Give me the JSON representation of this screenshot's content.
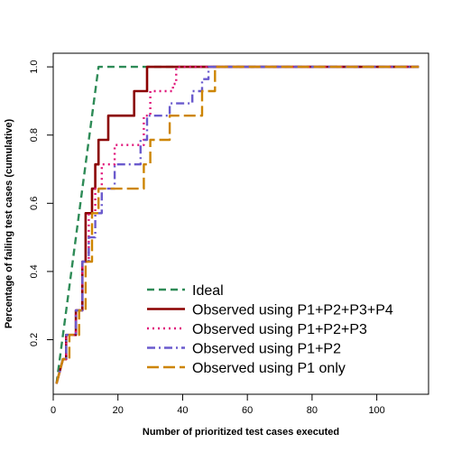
{
  "chart_data": {
    "type": "line",
    "title": "",
    "xlabel": "Number of prioritized test cases executed",
    "ylabel": "Percentage of failing test cases (cumulative)",
    "xlim": [
      0,
      116
    ],
    "ylim": [
      0.04,
      1.04
    ],
    "xticks": [
      0,
      20,
      40,
      60,
      80,
      100
    ],
    "yticks": [
      0.2,
      0.4,
      0.6,
      0.8,
      1.0
    ],
    "ytick_labels": [
      "0.2",
      "0.4",
      "0.6",
      "0.8",
      "1.0"
    ],
    "grid": false,
    "legend_position": "bottom-right",
    "series": [
      {
        "name": "Ideal",
        "color": "#2e8b57",
        "dash": "dashed",
        "x": [
          1,
          14,
          113
        ],
        "y": [
          0.071,
          1.0,
          1.0
        ]
      },
      {
        "name": "Observed using P1+P2+P3+P4",
        "color": "#8b0000",
        "dash": "solid",
        "x": [
          1,
          3,
          4,
          4,
          7,
          7,
          9,
          9,
          10,
          10,
          12,
          12,
          13,
          13,
          14,
          14,
          17,
          17,
          25,
          25,
          29,
          29,
          113
        ],
        "y": [
          0.071,
          0.143,
          0.143,
          0.214,
          0.214,
          0.286,
          0.286,
          0.429,
          0.429,
          0.571,
          0.571,
          0.643,
          0.643,
          0.714,
          0.714,
          0.786,
          0.786,
          0.857,
          0.857,
          0.929,
          0.929,
          1.0,
          1.0
        ]
      },
      {
        "name": "Observed using P1+P2+P3",
        "color": "#e0157a",
        "dash": "dotted",
        "x": [
          1,
          3,
          4,
          4,
          7,
          7,
          9,
          9,
          11,
          11,
          13,
          13,
          15,
          15,
          19,
          19,
          28,
          28,
          30,
          30,
          37,
          37,
          38,
          38,
          113
        ],
        "y": [
          0.071,
          0.143,
          0.143,
          0.214,
          0.214,
          0.286,
          0.286,
          0.429,
          0.429,
          0.571,
          0.571,
          0.643,
          0.643,
          0.714,
          0.714,
          0.771,
          0.771,
          0.857,
          0.857,
          0.929,
          0.929,
          0.95,
          0.95,
          1.0,
          1.0
        ]
      },
      {
        "name": "Observed using P1+P2",
        "color": "#6a5acd",
        "dash": "dashdot",
        "x": [
          1,
          3,
          4,
          4,
          7,
          7,
          9,
          9,
          11,
          11,
          13,
          13,
          15,
          15,
          19,
          19,
          27,
          27,
          29,
          29,
          36,
          36,
          43,
          43,
          46,
          46,
          48,
          48,
          113
        ],
        "y": [
          0.071,
          0.143,
          0.143,
          0.214,
          0.214,
          0.286,
          0.286,
          0.429,
          0.429,
          0.5,
          0.5,
          0.571,
          0.571,
          0.643,
          0.643,
          0.714,
          0.714,
          0.786,
          0.786,
          0.857,
          0.857,
          0.893,
          0.893,
          0.929,
          0.929,
          0.964,
          0.964,
          1.0,
          1.0
        ]
      },
      {
        "name": "Observed using P1 only",
        "color": "#cd8500",
        "dash": "longdash",
        "x": [
          1,
          3,
          5,
          5,
          8,
          8,
          10,
          10,
          12,
          12,
          14,
          14,
          28,
          28,
          30,
          30,
          36,
          36,
          46,
          46,
          50,
          50,
          113
        ],
        "y": [
          0.071,
          0.143,
          0.143,
          0.214,
          0.214,
          0.286,
          0.286,
          0.429,
          0.429,
          0.571,
          0.571,
          0.643,
          0.643,
          0.714,
          0.714,
          0.786,
          0.786,
          0.857,
          0.857,
          0.929,
          0.929,
          1.0,
          1.0
        ]
      }
    ]
  }
}
